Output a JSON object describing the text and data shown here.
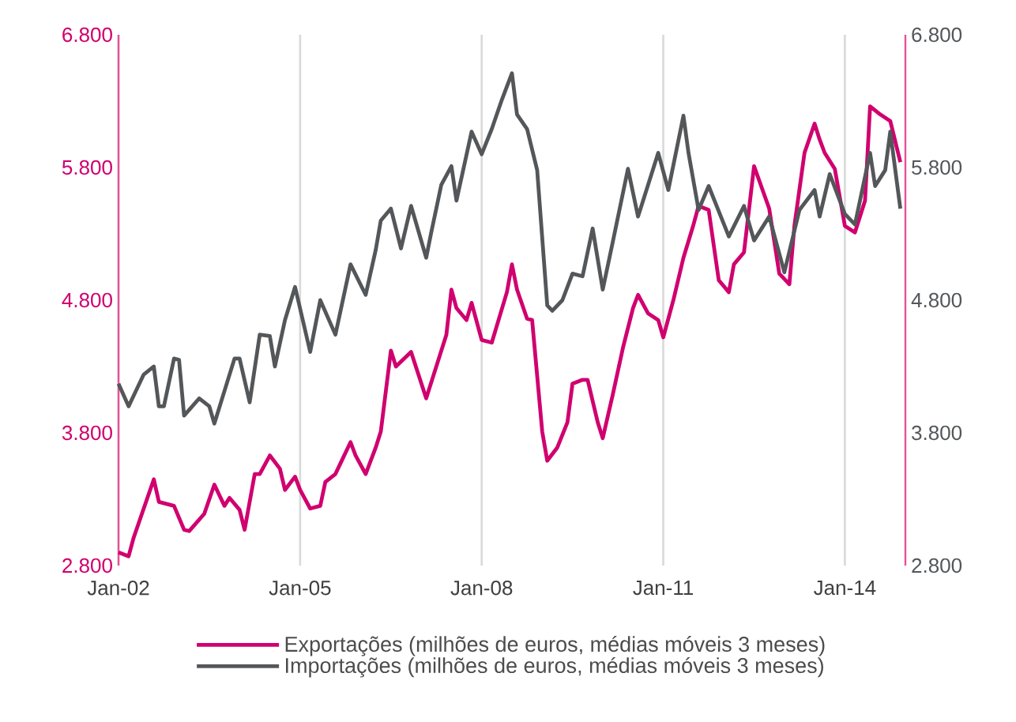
{
  "chart_data": {
    "type": "line",
    "xlim": [
      "2002-01",
      "2015-01"
    ],
    "ylim": [
      2800,
      6800
    ],
    "y2lim": [
      2800,
      6800
    ],
    "xticks": [
      {
        "value": "2002-01",
        "label": "Jan-02"
      },
      {
        "value": "2005-01",
        "label": "Jan-05"
      },
      {
        "value": "2008-01",
        "label": "Jan-08"
      },
      {
        "value": "2011-01",
        "label": "Jan-11"
      },
      {
        "value": "2014-01",
        "label": "Jan-14"
      }
    ],
    "yticks": [
      {
        "value": 2800,
        "label": "2.800"
      },
      {
        "value": 3800,
        "label": "3.800"
      },
      {
        "value": 4800,
        "label": "4.800"
      },
      {
        "value": 5800,
        "label": "5.800"
      },
      {
        "value": 6800,
        "label": "6.800"
      }
    ],
    "y2ticks": [
      {
        "value": 2800,
        "label": "2.800"
      },
      {
        "value": 3800,
        "label": "3.800"
      },
      {
        "value": 4800,
        "label": "4.800"
      },
      {
        "value": 5800,
        "label": "5.800"
      },
      {
        "value": 6800,
        "label": "6.800"
      }
    ],
    "grid": "x",
    "legend": "bottom",
    "marker": "none",
    "line_style": "solid",
    "series": [
      {
        "name": "Exportações (milhões de euros, médias móveis 3 meses)",
        "color": "#d0006f",
        "axis": "y",
        "x": [
          "2002-01",
          "2002-03",
          "2002-04",
          "2002-06",
          "2002-08",
          "2002-09",
          "2002-12",
          "2003-02",
          "2003-03",
          "2003-06",
          "2003-08",
          "2003-10",
          "2003-11",
          "2004-01",
          "2004-02",
          "2004-04",
          "2004-05",
          "2004-07",
          "2004-09",
          "2004-10",
          "2004-12",
          "2005-01",
          "2005-03",
          "2005-05",
          "2005-06",
          "2005-08",
          "2005-09",
          "2005-11",
          "2005-12",
          "2006-02",
          "2006-04",
          "2006-05",
          "2006-07",
          "2006-08",
          "2006-11",
          "2007-02",
          "2007-04",
          "2007-06",
          "2007-07",
          "2007-08",
          "2007-10",
          "2007-11",
          "2008-01",
          "2008-03",
          "2008-06",
          "2008-07",
          "2008-08",
          "2008-10",
          "2008-11",
          "2009-01",
          "2009-02",
          "2009-04",
          "2009-06",
          "2009-07",
          "2009-09",
          "2009-10",
          "2009-12",
          "2010-01",
          "2010-03",
          "2010-05",
          "2010-07",
          "2010-08",
          "2010-10",
          "2010-12",
          "2011-01",
          "2011-03",
          "2011-05",
          "2011-07",
          "2011-08",
          "2011-10",
          "2011-12",
          "2012-02",
          "2012-03",
          "2012-05",
          "2012-07",
          "2012-10",
          "2012-12",
          "2013-02",
          "2013-03",
          "2013-05",
          "2013-07",
          "2013-08",
          "2013-09",
          "2013-11",
          "2014-01",
          "2014-03",
          "2014-05",
          "2014-06",
          "2014-08",
          "2014-10",
          "2014-12"
        ],
        "values": [
          2900,
          2870,
          3010,
          3230,
          3450,
          3280,
          3250,
          3070,
          3060,
          3190,
          3410,
          3250,
          3310,
          3220,
          3070,
          3490,
          3490,
          3630,
          3530,
          3370,
          3470,
          3370,
          3230,
          3250,
          3430,
          3490,
          3570,
          3730,
          3630,
          3490,
          3690,
          3810,
          4420,
          4300,
          4410,
          4060,
          4300,
          4540,
          4880,
          4740,
          4650,
          4780,
          4500,
          4480,
          4860,
          5070,
          4880,
          4660,
          4650,
          3810,
          3590,
          3690,
          3880,
          4170,
          4200,
          4200,
          3880,
          3760,
          4090,
          4440,
          4740,
          4840,
          4700,
          4650,
          4520,
          4800,
          5120,
          5370,
          5510,
          5480,
          4950,
          4860,
          5070,
          5160,
          5810,
          5490,
          5000,
          4920,
          5360,
          5910,
          6130,
          6010,
          5910,
          5790,
          5360,
          5310,
          5550,
          6260,
          6200,
          6150,
          5840
        ]
      },
      {
        "name": "Importações (milhões de euros, médias móveis 3 meses)",
        "color": "#54575a",
        "axis": "y2",
        "x": [
          "2002-01",
          "2002-03",
          "2002-06",
          "2002-08",
          "2002-09",
          "2002-10",
          "2002-12",
          "2003-01",
          "2003-02",
          "2003-05",
          "2003-07",
          "2003-08",
          "2003-12",
          "2004-01",
          "2004-03",
          "2004-05",
          "2004-07",
          "2004-08",
          "2004-10",
          "2004-12",
          "2005-03",
          "2005-05",
          "2005-08",
          "2005-11",
          "2006-02",
          "2006-04",
          "2006-05",
          "2006-07",
          "2006-09",
          "2006-11",
          "2007-02",
          "2007-03",
          "2007-05",
          "2007-07",
          "2007-08",
          "2007-11",
          "2008-01",
          "2008-03",
          "2008-05",
          "2008-07",
          "2008-08",
          "2008-10",
          "2008-12",
          "2009-02",
          "2009-03",
          "2009-05",
          "2009-07",
          "2009-09",
          "2009-11",
          "2010-01",
          "2010-03",
          "2010-06",
          "2010-08",
          "2010-12",
          "2011-02",
          "2011-05",
          "2011-06",
          "2011-08",
          "2011-10",
          "2012-02",
          "2012-05",
          "2012-07",
          "2012-10",
          "2013-01",
          "2013-04",
          "2013-07",
          "2013-08",
          "2013-10",
          "2014-01",
          "2014-03",
          "2014-06",
          "2014-07",
          "2014-09",
          "2014-10",
          "2014-12"
        ],
        "values": [
          4170,
          4000,
          4240,
          4300,
          4000,
          4000,
          4360,
          4350,
          3930,
          4060,
          4000,
          3870,
          4360,
          4360,
          4030,
          4540,
          4530,
          4300,
          4650,
          4900,
          4410,
          4800,
          4540,
          5070,
          4840,
          5180,
          5400,
          5490,
          5190,
          5510,
          5120,
          5310,
          5670,
          5810,
          5550,
          6070,
          5900,
          6090,
          6310,
          6510,
          6200,
          6090,
          5780,
          4760,
          4720,
          4800,
          5000,
          4980,
          5340,
          4880,
          5240,
          5790,
          5430,
          5910,
          5630,
          6190,
          5910,
          5480,
          5660,
          5280,
          5510,
          5250,
          5430,
          5010,
          5480,
          5630,
          5430,
          5750,
          5450,
          5370,
          5910,
          5660,
          5780,
          6070,
          5490
        ]
      }
    ]
  }
}
